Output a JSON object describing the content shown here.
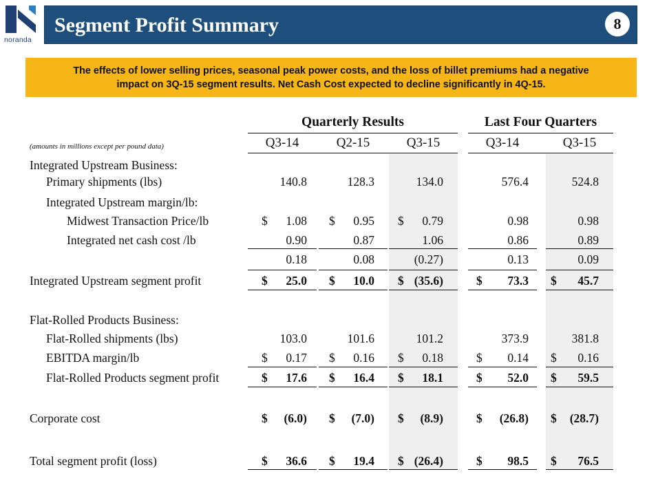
{
  "header": {
    "logo_text": "noranda",
    "title": "Segment Profit Summary",
    "page_number": "8"
  },
  "callout": {
    "line1": "The effects of lower selling prices, seasonal peak power costs, and the loss of billet premiums had a negative",
    "line2": "impact on 3Q-15 segment results. Net Cash Cost expected to decline significantly in 4Q-15."
  },
  "table": {
    "note": "(amounts in millions except per pound data)",
    "groups": [
      "Quarterly Results",
      "Last Four Quarters"
    ],
    "columns": [
      "Q3-14",
      "Q2-15",
      "Q3-15",
      "Q3-14",
      "Q3-15"
    ],
    "rows": [
      {
        "label": "Integrated Upstream Business:",
        "values": [],
        "indent": 0
      },
      {
        "label": "Primary shipments (lbs)",
        "indent": 1,
        "values": [
          {
            "d": "",
            "v": "140.8"
          },
          {
            "d": "",
            "v": "128.3"
          },
          {
            "d": "",
            "v": "134.0"
          },
          {
            "d": "",
            "v": "576.4"
          },
          {
            "d": "",
            "v": "524.8"
          }
        ]
      },
      {
        "label": "Integrated Upstream margin/lb:",
        "values": [],
        "indent": 1
      },
      {
        "label": "Midwest Transaction Price/lb",
        "indent": 2,
        "values": [
          {
            "d": "$",
            "v": "1.08"
          },
          {
            "d": "$",
            "v": "0.95"
          },
          {
            "d": "$",
            "v": "0.79"
          },
          {
            "d": "",
            "v": "0.98"
          },
          {
            "d": "",
            "v": "0.98"
          }
        ]
      },
      {
        "label": "Integrated net cash cost /lb",
        "indent": 2,
        "values": [
          {
            "d": "",
            "v": "0.90"
          },
          {
            "d": "",
            "v": "0.87"
          },
          {
            "d": "",
            "v": "1.06"
          },
          {
            "d": "",
            "v": "0.86"
          },
          {
            "d": "",
            "v": "0.89"
          }
        ]
      },
      {
        "label": "",
        "indent": 0,
        "values": [
          {
            "d": "",
            "v": "0.18"
          },
          {
            "d": "",
            "v": "0.08"
          },
          {
            "d": "",
            "v": "(0.27)"
          },
          {
            "d": "",
            "v": "0.13"
          },
          {
            "d": "",
            "v": "0.09"
          }
        ]
      },
      {
        "label": "Integrated Upstream segment profit",
        "indent": 0,
        "bold_values": true,
        "values": [
          {
            "d": "$",
            "v": "25.0"
          },
          {
            "d": "$",
            "v": "10.0"
          },
          {
            "d": "$",
            "v": "(35.6)"
          },
          {
            "d": "$",
            "v": "73.3"
          },
          {
            "d": "$",
            "v": "45.7"
          }
        ]
      },
      {
        "label": "Flat-Rolled Products Business:",
        "values": [],
        "indent": 0
      },
      {
        "label": "Flat-Rolled shipments (lbs)",
        "indent": 1,
        "values": [
          {
            "d": "",
            "v": "103.0"
          },
          {
            "d": "",
            "v": "101.6"
          },
          {
            "d": "",
            "v": "101.2"
          },
          {
            "d": "",
            "v": "373.9"
          },
          {
            "d": "",
            "v": "381.8"
          }
        ]
      },
      {
        "label": "EBITDA margin/lb",
        "indent": 1,
        "values": [
          {
            "d": "$",
            "v": "0.17"
          },
          {
            "d": "$",
            "v": "0.16"
          },
          {
            "d": "$",
            "v": "0.18"
          },
          {
            "d": "$",
            "v": "0.14"
          },
          {
            "d": "$",
            "v": "0.16"
          }
        ]
      },
      {
        "label": "Flat-Rolled Products segment profit",
        "indent": 1,
        "bold_values": true,
        "values": [
          {
            "d": "$",
            "v": "17.6"
          },
          {
            "d": "$",
            "v": "16.4"
          },
          {
            "d": "$",
            "v": "18.1"
          },
          {
            "d": "$",
            "v": "52.0"
          },
          {
            "d": "$",
            "v": "59.5"
          }
        ]
      },
      {
        "label": "Corporate cost",
        "indent": 0,
        "bold_values": true,
        "values": [
          {
            "d": "$",
            "v": "(6.0)"
          },
          {
            "d": "$",
            "v": "(7.0)"
          },
          {
            "d": "$",
            "v": "(8.9)"
          },
          {
            "d": "$",
            "v": "(26.8)"
          },
          {
            "d": "$",
            "v": "(28.7)"
          }
        ]
      },
      {
        "label": "Total segment profit (loss)",
        "indent": 0,
        "bold_values": true,
        "values": [
          {
            "d": "$",
            "v": "36.6"
          },
          {
            "d": "$",
            "v": "19.4"
          },
          {
            "d": "$",
            "v": "(26.4)"
          },
          {
            "d": "$",
            "v": "98.5"
          },
          {
            "d": "$",
            "v": "76.5"
          }
        ]
      }
    ]
  },
  "colors": {
    "title_bar": "#1e4f7c",
    "callout": "#f7b617",
    "shade": "#efefef"
  }
}
